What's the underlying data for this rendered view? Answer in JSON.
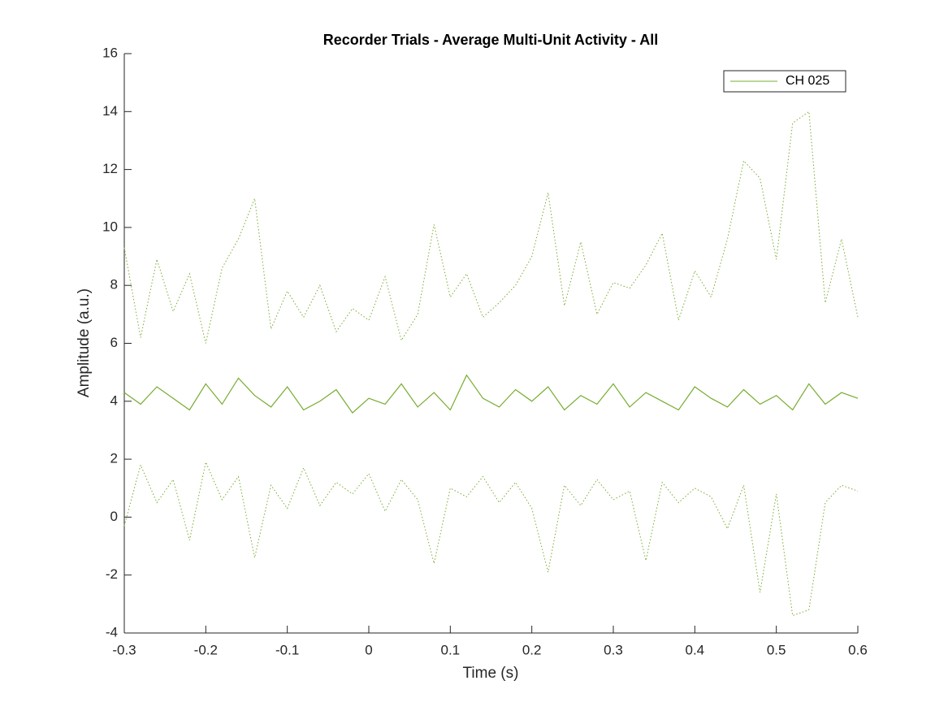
{
  "chart_data": {
    "type": "line",
    "title": "Recorder Trials - Average Multi-Unit Activity - All",
    "xlabel": "Time (s)",
    "ylabel": "Amplitude (a.u.)",
    "x": [
      -0.3,
      -0.28,
      -0.26,
      -0.24,
      -0.22,
      -0.2,
      -0.18,
      -0.16,
      -0.14,
      -0.12,
      -0.1,
      -0.08,
      -0.06,
      -0.04,
      -0.02,
      0,
      0.02,
      0.04,
      0.06,
      0.08,
      0.1,
      0.12,
      0.14,
      0.16,
      0.18,
      0.2,
      0.22,
      0.24,
      0.26,
      0.28,
      0.3,
      0.32,
      0.34,
      0.36,
      0.38,
      0.4,
      0.42,
      0.44,
      0.46,
      0.48,
      0.5,
      0.52,
      0.54,
      0.56,
      0.58,
      0.6
    ],
    "series": [
      {
        "name": "CH 025",
        "color": "#77ac30",
        "style": "solid",
        "values": [
          4.3,
          3.9,
          4.5,
          4.1,
          3.7,
          4.6,
          3.9,
          4.8,
          4.2,
          3.8,
          4.5,
          3.7,
          4.0,
          4.4,
          3.6,
          4.1,
          3.9,
          4.6,
          3.8,
          4.3,
          3.7,
          4.9,
          4.1,
          3.8,
          4.4,
          4.0,
          4.5,
          3.7,
          4.2,
          3.9,
          4.6,
          3.8,
          4.3,
          4.0,
          3.7,
          4.5,
          4.1,
          3.8,
          4.4,
          3.9,
          4.2,
          3.7,
          4.6,
          3.9,
          4.3,
          4.1
        ]
      },
      {
        "color": "#77ac30",
        "style": "dotted",
        "values": [
          9.3,
          6.2,
          8.9,
          7.1,
          8.4,
          6.0,
          8.6,
          9.6,
          11.0,
          6.5,
          7.8,
          6.9,
          8.0,
          6.4,
          7.2,
          6.8,
          8.3,
          6.1,
          7.0,
          10.1,
          7.6,
          8.4,
          6.9,
          7.4,
          8.0,
          9.0,
          11.2,
          7.3,
          9.5,
          7.0,
          8.1,
          7.9,
          8.7,
          9.8,
          6.8,
          8.5,
          7.6,
          9.6,
          12.3,
          11.7,
          8.9,
          13.6,
          14.0,
          7.4,
          9.6,
          6.9
        ]
      },
      {
        "color": "#77ac30",
        "style": "dotted",
        "values": [
          -0.3,
          1.8,
          0.5,
          1.3,
          -0.8,
          1.9,
          0.6,
          1.4,
          -1.4,
          1.1,
          0.3,
          1.7,
          0.4,
          1.2,
          0.8,
          1.5,
          0.2,
          1.3,
          0.6,
          -1.6,
          1.0,
          0.7,
          1.4,
          0.5,
          1.2,
          0.3,
          -1.9,
          1.1,
          0.4,
          1.3,
          0.6,
          0.9,
          -1.5,
          1.2,
          0.5,
          1.0,
          0.7,
          -0.4,
          1.1,
          -2.6,
          0.8,
          -3.4,
          -3.2,
          0.5,
          1.1,
          0.9
        ]
      }
    ],
    "xlim": [
      -0.3,
      0.6
    ],
    "xticks": [
      -0.3,
      -0.2,
      -0.1,
      0,
      0.1,
      0.2,
      0.3,
      0.4,
      0.5,
      0.6
    ],
    "ylim": [
      -4,
      16
    ],
    "yticks": [
      -4,
      -2,
      0,
      2,
      4,
      6,
      8,
      10,
      12,
      14,
      16
    ],
    "grid": false,
    "legend": "northeast"
  }
}
